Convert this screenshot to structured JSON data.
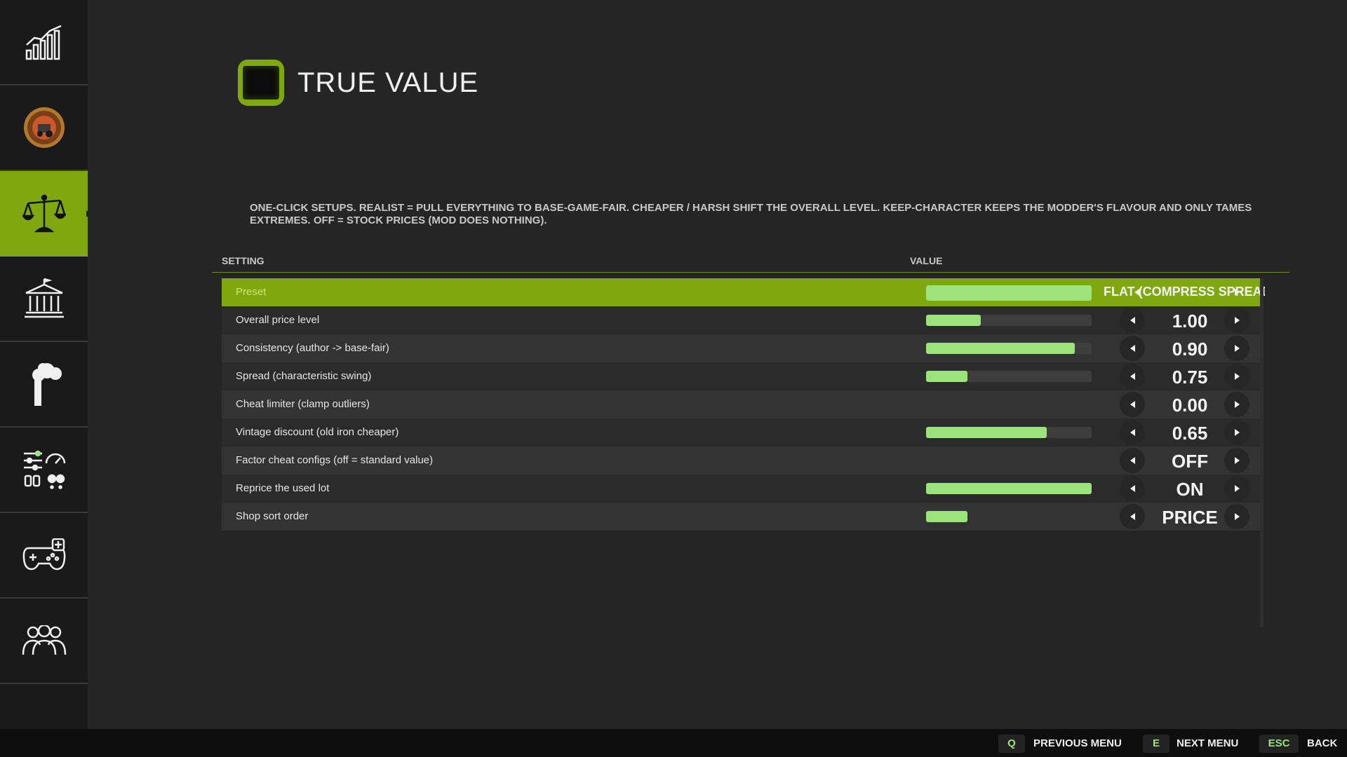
{
  "header": {
    "title": "TRUE VALUE"
  },
  "description": "ONE-CLICK SETUPS. REALIST = PULL EVERYTHING TO BASE-GAME-FAIR. CHEAPER / HARSH SHIFT THE OVERALL LEVEL. KEEP-CHARACTER KEEPS THE MODDER'S FLAVOUR AND ONLY TAMES EXTREMES. OFF = STOCK PRICES (MOD DOES NOTHING).",
  "table": {
    "setting_header": "SETTING",
    "value_header": "VALUE",
    "rows": [
      {
        "label": "Preset",
        "value": "FLAT (COMPRESS SPREAD",
        "fill": 1.0,
        "selected": true
      },
      {
        "label": "Overall price level",
        "value": "1.00",
        "fill": 0.33
      },
      {
        "label": "Consistency  (author -> base-fair)",
        "value": "0.90",
        "fill": 0.9
      },
      {
        "label": "Spread  (characteristic swing)",
        "value": "0.75",
        "fill": 0.25
      },
      {
        "label": "Cheat limiter  (clamp outliers)",
        "value": "0.00",
        "fill": null
      },
      {
        "label": "Vintage discount  (old iron cheaper)",
        "value": "0.65",
        "fill": 0.73
      },
      {
        "label": "Factor cheat configs  (off = standard value)",
        "value": "OFF",
        "fill": null
      },
      {
        "label": "Reprice the used lot",
        "value": "ON",
        "fill": 1.0
      },
      {
        "label": "Shop sort order",
        "value": "PRICE",
        "fill": 0.25,
        "no_track": true
      }
    ]
  },
  "sidebar": {
    "items": [
      {
        "name": "stats-chart-icon"
      },
      {
        "name": "game-emblem-icon"
      },
      {
        "name": "balance-scale-icon",
        "active": true
      },
      {
        "name": "bank-building-icon"
      },
      {
        "name": "factory-chimney-icon"
      },
      {
        "name": "settings-sliders-icon"
      },
      {
        "name": "gamepad-icon"
      },
      {
        "name": "users-group-icon"
      },
      {
        "name": "settings-sliders-icon-2"
      }
    ]
  },
  "footer": {
    "prev_key": "Q",
    "prev_label": "PREVIOUS MENU",
    "next_key": "E",
    "next_label": "NEXT MENU",
    "back_key": "ESC",
    "back_label": "BACK"
  },
  "colors": {
    "accent": "#7fa80f",
    "bar": "#9be37a",
    "background": "#252525"
  }
}
